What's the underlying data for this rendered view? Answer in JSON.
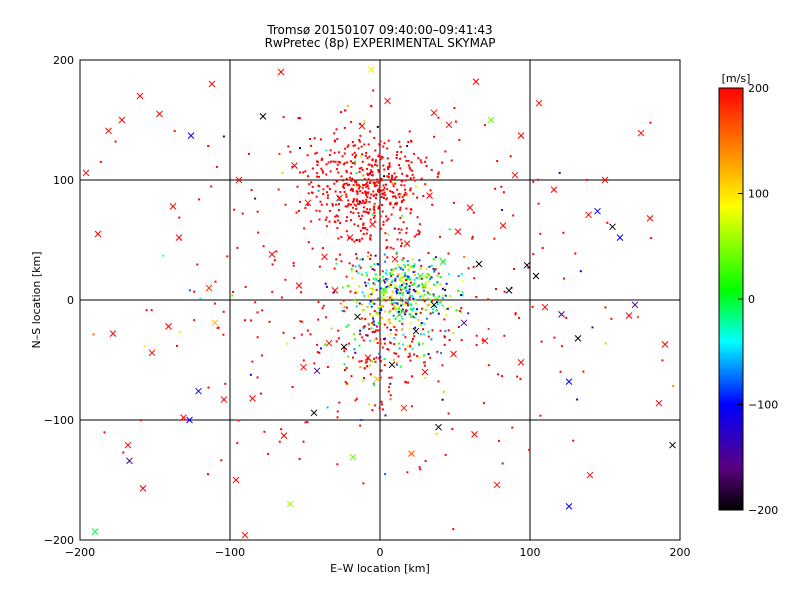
{
  "title_lines": [
    "Tromsø 20150107 09:40:00–09:41:43",
    "RwPretec (8p) EXPERIMENTAL SKYMAP"
  ],
  "chart_data": {
    "type": "scatter",
    "title": "Tromsø 20150107 09:40:00–09:41:43",
    "subtitle": "RwPretec (8p) EXPERIMENTAL SKYMAP",
    "xlabel": "E–W location [km]",
    "ylabel": "N–S location [km]",
    "xlim": [
      -200,
      200
    ],
    "ylim": [
      -200,
      200
    ],
    "xticks": [
      -200,
      -100,
      0,
      100,
      200
    ],
    "yticks": [
      -200,
      -100,
      0,
      100,
      200
    ],
    "grid": true,
    "colorbar": {
      "label": "[m/s]",
      "range": [
        -200,
        200
      ],
      "ticks": [
        200,
        100,
        0,
        -100,
        -200
      ],
      "colormap": [
        "#000000",
        "#5a0080",
        "#0000ff",
        "#00ffff",
        "#00ff00",
        "#ffff00",
        "#ff8000",
        "#ff0000"
      ]
    },
    "marker_note": "small dots for near-field echoes, x markers for scattered echoes; color encodes line-of-sight velocity",
    "series": [
      {
        "marker": "x",
        "points": [
          [
            -196,
            106,
            200
          ],
          [
            -190,
            -193,
            0
          ],
          [
            -181,
            141,
            200
          ],
          [
            -172,
            150,
            200
          ],
          [
            -167,
            -134,
            -150
          ],
          [
            -168,
            -121,
            200
          ],
          [
            -158,
            -157,
            200
          ],
          [
            -152,
            -44,
            200
          ],
          [
            -147,
            155,
            200
          ],
          [
            -141,
            -22,
            200
          ],
          [
            -138,
            78,
            200
          ],
          [
            -134,
            52,
            200
          ],
          [
            -131,
            -98,
            200
          ],
          [
            -127,
            -100,
            -100
          ],
          [
            -126,
            137,
            -100
          ],
          [
            -121,
            -76,
            -100
          ],
          [
            -114,
            10,
            180
          ],
          [
            -110,
            -19,
            120
          ],
          [
            -104,
            -83,
            200
          ],
          [
            -96,
            -150,
            200
          ],
          [
            -94,
            100,
            200
          ],
          [
            -90,
            -196,
            200
          ],
          [
            -85,
            -82,
            200
          ],
          [
            -78,
            153,
            -200
          ],
          [
            -72,
            38,
            200
          ],
          [
            -64,
            -113,
            200
          ],
          [
            -60,
            -170,
            60
          ],
          [
            -57,
            112,
            200
          ],
          [
            -54,
            12,
            200
          ],
          [
            -51,
            -56,
            200
          ],
          [
            -48,
            81,
            200
          ],
          [
            -44,
            -94,
            -200
          ],
          [
            -42,
            -59,
            -150
          ],
          [
            -37,
            36,
            200
          ],
          [
            -34,
            -36,
            200
          ],
          [
            -30,
            8,
            200
          ],
          [
            -27,
            85,
            200
          ],
          [
            -24,
            -39,
            -200
          ],
          [
            -20,
            52,
            200
          ],
          [
            -18,
            -131,
            40
          ],
          [
            -15,
            -14,
            -200
          ],
          [
            -12,
            145,
            200
          ],
          [
            -8,
            -48,
            200
          ],
          [
            -5,
            63,
            200
          ],
          [
            -2,
            -66,
            120
          ],
          [
            3,
            8,
            40
          ],
          [
            5,
            166,
            200
          ],
          [
            8,
            -54,
            -200
          ],
          [
            10,
            34,
            200
          ],
          [
            13,
            -12,
            0
          ],
          [
            16,
            -90,
            180
          ],
          [
            18,
            47,
            200
          ],
          [
            21,
            -128,
            160
          ],
          [
            24,
            -26,
            -200
          ],
          [
            27,
            20,
            0
          ],
          [
            30,
            -60,
            200
          ],
          [
            33,
            87,
            200
          ],
          [
            36,
            -4,
            -200
          ],
          [
            39,
            -106,
            -200
          ],
          [
            42,
            32,
            0
          ],
          [
            46,
            146,
            200
          ],
          [
            49,
            -45,
            200
          ],
          [
            52,
            57,
            200
          ],
          [
            56,
            -19,
            -150
          ],
          [
            60,
            77,
            200
          ],
          [
            63,
            -112,
            200
          ],
          [
            66,
            30,
            -200
          ],
          [
            70,
            -34,
            200
          ],
          [
            74,
            150,
            40
          ],
          [
            78,
            -154,
            200
          ],
          [
            82,
            62,
            200
          ],
          [
            86,
            8,
            -200
          ],
          [
            90,
            104,
            200
          ],
          [
            94,
            -52,
            200
          ],
          [
            98,
            29,
            -200
          ],
          [
            104,
            20,
            -200
          ],
          [
            110,
            -6,
            200
          ],
          [
            116,
            92,
            200
          ],
          [
            121,
            -12,
            -150
          ],
          [
            126,
            -68,
            -100
          ],
          [
            132,
            -32,
            -200
          ],
          [
            139,
            71,
            200
          ],
          [
            145,
            74,
            -100
          ],
          [
            150,
            100,
            200
          ],
          [
            155,
            61,
            -200
          ],
          [
            160,
            52,
            -100
          ],
          [
            166,
            -13,
            200
          ],
          [
            170,
            -4,
            -150
          ],
          [
            174,
            139,
            200
          ],
          [
            180,
            68,
            200
          ],
          [
            186,
            -86,
            200
          ],
          [
            190,
            -37,
            200
          ],
          [
            195,
            -121,
            -200
          ],
          [
            -188,
            55,
            200
          ],
          [
            -160,
            170,
            200
          ],
          [
            -112,
            180,
            200
          ],
          [
            -66,
            190,
            200
          ],
          [
            -6,
            192,
            100
          ],
          [
            36,
            156,
            200
          ],
          [
            64,
            182,
            200
          ],
          [
            106,
            164,
            200
          ],
          [
            140,
            -146,
            200
          ],
          [
            126,
            -172,
            -100
          ],
          [
            94,
            137,
            200
          ],
          [
            -178,
            -28,
            200
          ]
        ]
      },
      {
        "marker": "dot",
        "clusters": [
          {
            "center": [
              -10,
              95
            ],
            "spread": [
              35,
              42
            ],
            "count": 520,
            "velocity": 200
          },
          {
            "center": [
              15,
              5
            ],
            "spread": [
              28,
              25
            ],
            "count": 420,
            "velocity": 0
          },
          {
            "center": [
              0,
              -40
            ],
            "spread": [
              30,
              35
            ],
            "count": 160,
            "velocity": 120
          },
          {
            "center": [
              0,
              0
            ],
            "spread": [
              120,
              120
            ],
            "count": 320,
            "velocity": 200
          }
        ]
      }
    ]
  }
}
